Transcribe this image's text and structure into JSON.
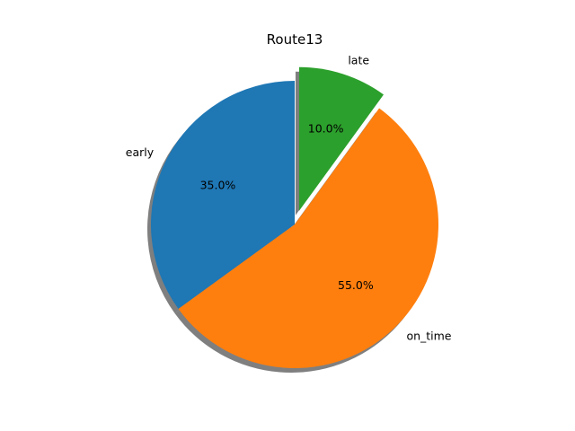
{
  "chart_data": {
    "type": "pie",
    "title": "Route13",
    "labels": [
      "early",
      "on_time",
      "late"
    ],
    "values": [
      35.0,
      55.0,
      10.0
    ],
    "percent_labels": [
      "35.0%",
      "55.0%",
      "10.0%"
    ],
    "colors": [
      "#1f77b4",
      "#ff7f0e",
      "#2ca02c"
    ],
    "explode": [
      0,
      0,
      0.1
    ],
    "start_angle_deg": 90,
    "direction": "counterclockwise",
    "shadow": true,
    "legend": "none"
  }
}
